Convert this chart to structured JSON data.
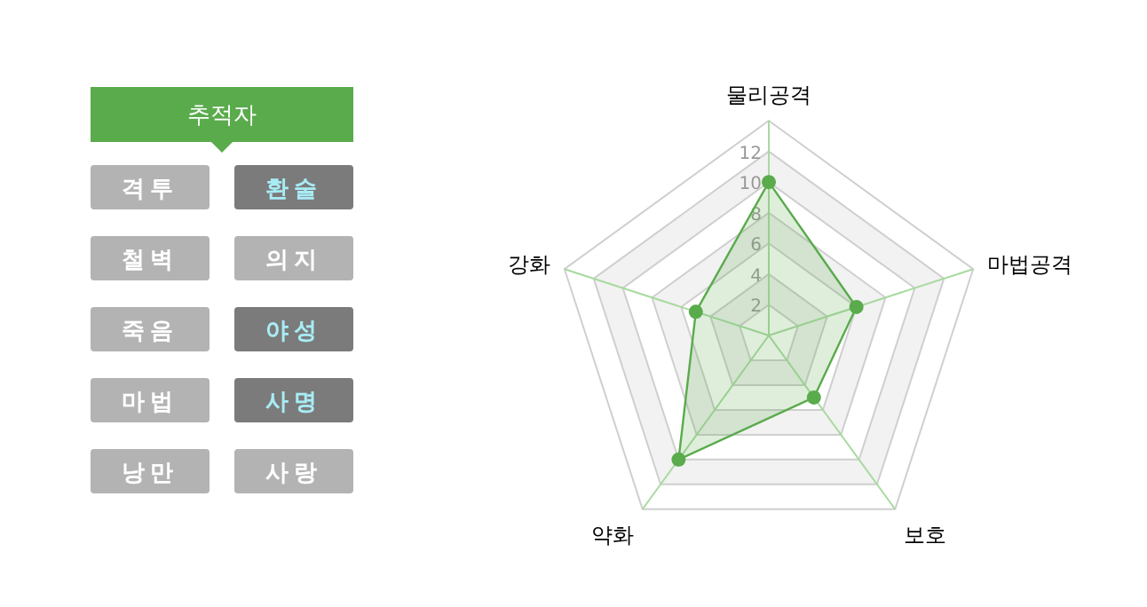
{
  "chart_data": [
    {
      "type": "other",
      "title": "추적자",
      "annotations": [
        "격투",
        "환술",
        "철벽",
        "의지",
        "죽음",
        "야성",
        "마법",
        "사명",
        "낭만",
        "사랑"
      ],
      "colors": [
        "#b3b3b3",
        "#7b7b7b",
        "#b3b3b3",
        "#b3b3b3",
        "#b3b3b3",
        "#7b7b7b",
        "#b3b3b3",
        "#7b7b7b",
        "#b3b3b3",
        "#b3b3b3"
      ]
    },
    {
      "type": "radar",
      "categories": [
        "물리공격",
        "마법공격",
        "보호",
        "약화",
        "강화"
      ],
      "series": [
        {
          "color": "#5aab4c",
          "values": [
            10,
            6,
            5,
            10,
            5
          ]
        }
      ],
      "ylim": [
        0,
        14
      ],
      "yticks": [
        2,
        4,
        6,
        8,
        10,
        12
      ],
      "grid": true,
      "marker": "circle"
    }
  ]
}
